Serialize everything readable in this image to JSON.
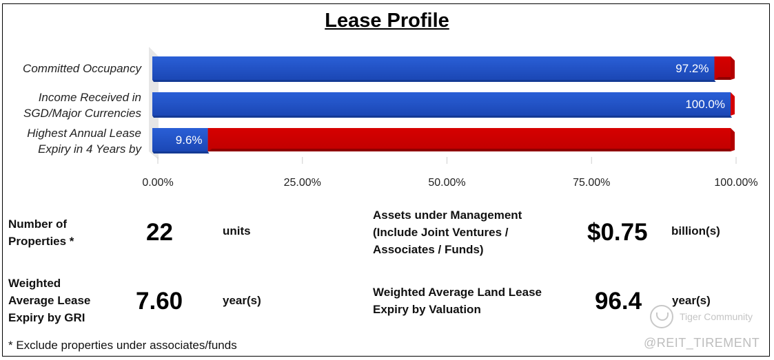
{
  "title": "Lease Profile",
  "chart_data": {
    "type": "bar",
    "orientation": "horizontal",
    "stacked": true,
    "categories": [
      [
        "Committed Occupancy"
      ],
      [
        "Income Received in",
        "SGD/Major Currencies"
      ],
      [
        "Highest Annual Lease",
        "Expiry in 4 Years by"
      ]
    ],
    "values": [
      97.2,
      100.0,
      9.6
    ],
    "value_labels": [
      "97.2%",
      "100.0%",
      "9.6%"
    ],
    "xlim": [
      0,
      100
    ],
    "x_ticks": [
      0,
      25,
      50,
      75,
      100
    ],
    "x_tick_labels": [
      "0.00%",
      "25.00%",
      "50.00%",
      "75.00%",
      "100.00%"
    ],
    "colors": {
      "value": "#1c4fc4",
      "remainder": "#cc0000"
    },
    "grid": false,
    "legend": "none"
  },
  "stats": {
    "properties": {
      "label": [
        "Number of",
        "Properties *"
      ],
      "value": "22",
      "unit": "units"
    },
    "wale": {
      "label": [
        "Weighted",
        "Average Lease",
        "Expiry by GRI"
      ],
      "value": "7.60",
      "unit": "year(s)"
    },
    "aum": {
      "label": [
        "Assets under Management",
        "(Include Joint Ventures /",
        "Associates / Funds)"
      ],
      "value": "$0.75",
      "unit": "billion(s)"
    },
    "land_lease": {
      "label": [
        "Weighted Average Land Lease",
        "Expiry by Valuation"
      ],
      "value": "96.4",
      "unit": "year(s)"
    }
  },
  "footnote": "* Exclude properties under associates/funds",
  "watermark": {
    "brand": "Tiger Community",
    "handle": "@REIT_TIREMENT"
  }
}
